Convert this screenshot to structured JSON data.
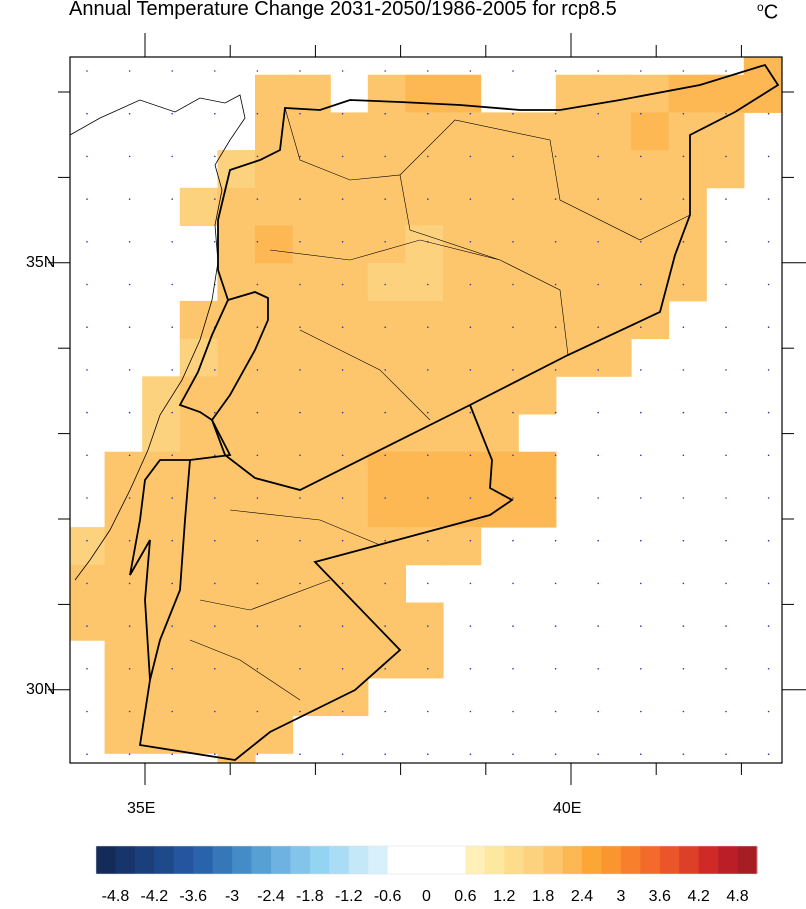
{
  "title": "Annual Temperature Change 2031-2050/1986-2005 for rcp8.5",
  "units": {
    "degree": "o",
    "unit": "C"
  },
  "axes": {
    "y_labels": [
      {
        "lat": 35,
        "text": "35N"
      },
      {
        "lat": 30,
        "text": "30N"
      }
    ],
    "x_labels": [
      {
        "lon": 35,
        "text": "35E"
      },
      {
        "lon": 40,
        "text": "40E"
      }
    ]
  },
  "colors": {
    "map_border": "#000000",
    "grid_dot": "#3030c0"
  },
  "chart_data": {
    "type": "heatmap",
    "title": "Annual Temperature Change 2031-2050/1986-2005 for rcp8.5",
    "units": "°C",
    "lon_range": [
      34.1,
      42.5
    ],
    "lat_range": [
      29.15,
      37.4
    ],
    "grid_values": [
      [
        null,
        null,
        null,
        null,
        null,
        null,
        null,
        null,
        null,
        null,
        null,
        null,
        null,
        null,
        null,
        null,
        null,
        null,
        2.1
      ],
      [
        null,
        null,
        null,
        null,
        null,
        1.8,
        1.8,
        null,
        1.8,
        2.1,
        2.1,
        null,
        null,
        1.8,
        1.8,
        1.8,
        2.1,
        2.1,
        2.1
      ],
      [
        null,
        null,
        null,
        null,
        null,
        1.8,
        1.8,
        1.8,
        1.8,
        1.8,
        1.8,
        1.8,
        1.8,
        1.8,
        1.8,
        2.1,
        1.8,
        1.8,
        null
      ],
      [
        null,
        null,
        null,
        null,
        1.5,
        1.8,
        1.8,
        1.8,
        1.8,
        1.8,
        1.8,
        1.8,
        1.8,
        1.8,
        1.8,
        1.8,
        1.8,
        1.8,
        null
      ],
      [
        null,
        null,
        null,
        1.5,
        1.8,
        1.8,
        1.8,
        1.8,
        1.8,
        1.8,
        1.8,
        1.8,
        1.8,
        1.8,
        1.8,
        1.8,
        1.8,
        null,
        null
      ],
      [
        null,
        null,
        null,
        null,
        1.8,
        2.1,
        1.8,
        1.8,
        1.8,
        1.5,
        1.8,
        1.8,
        1.8,
        1.8,
        1.8,
        1.8,
        1.8,
        null,
        null
      ],
      [
        null,
        null,
        null,
        null,
        1.8,
        1.8,
        1.8,
        1.8,
        1.5,
        1.5,
        1.8,
        1.8,
        1.8,
        1.8,
        1.8,
        1.8,
        1.8,
        null,
        null
      ],
      [
        null,
        null,
        null,
        1.8,
        1.8,
        1.8,
        1.8,
        1.8,
        1.8,
        1.8,
        1.8,
        1.8,
        1.8,
        1.8,
        1.8,
        1.8,
        null,
        null,
        null
      ],
      [
        null,
        null,
        null,
        1.5,
        1.8,
        1.8,
        1.8,
        1.8,
        1.8,
        1.8,
        1.8,
        1.8,
        1.8,
        1.8,
        1.8,
        null,
        null,
        null,
        null
      ],
      [
        null,
        null,
        1.5,
        1.8,
        1.8,
        1.8,
        1.8,
        1.8,
        1.8,
        1.8,
        1.8,
        1.8,
        1.8,
        null,
        null,
        null,
        null,
        null,
        null
      ],
      [
        null,
        null,
        1.5,
        1.8,
        1.8,
        1.8,
        1.8,
        1.8,
        1.8,
        1.8,
        1.8,
        1.8,
        null,
        null,
        null,
        null,
        null,
        null,
        null
      ],
      [
        null,
        1.8,
        1.8,
        1.8,
        1.8,
        1.8,
        1.8,
        1.8,
        2.1,
        2.1,
        2.1,
        2.1,
        2.1,
        null,
        null,
        null,
        null,
        null,
        null
      ],
      [
        null,
        1.8,
        1.8,
        1.8,
        1.8,
        1.8,
        1.8,
        1.8,
        2.1,
        2.1,
        2.1,
        2.1,
        2.1,
        null,
        null,
        null,
        null,
        null,
        null
      ],
      [
        1.5,
        1.8,
        1.8,
        1.8,
        1.8,
        1.8,
        1.8,
        1.8,
        1.8,
        1.8,
        1.8,
        null,
        null,
        null,
        null,
        null,
        null,
        null,
        null
      ],
      [
        1.8,
        1.8,
        1.8,
        1.8,
        1.8,
        1.8,
        1.8,
        1.8,
        1.8,
        null,
        null,
        null,
        null,
        null,
        null,
        null,
        null,
        null,
        null
      ],
      [
        1.8,
        1.8,
        1.8,
        1.8,
        1.8,
        1.8,
        1.8,
        1.8,
        1.8,
        1.8,
        null,
        null,
        null,
        null,
        null,
        null,
        null,
        null,
        null
      ],
      [
        null,
        1.8,
        1.8,
        1.8,
        1.8,
        1.8,
        1.8,
        1.8,
        1.8,
        1.8,
        null,
        null,
        null,
        null,
        null,
        null,
        null,
        null,
        null
      ],
      [
        null,
        1.8,
        1.8,
        1.8,
        1.8,
        1.8,
        1.8,
        1.8,
        null,
        null,
        null,
        null,
        null,
        null,
        null,
        null,
        null,
        null,
        null
      ],
      [
        null,
        1.8,
        1.8,
        1.8,
        1.8,
        1.8,
        null,
        null,
        null,
        null,
        null,
        null,
        null,
        null,
        null,
        null,
        null,
        null,
        null
      ],
      [
        null,
        null,
        null,
        null,
        1.8,
        null,
        null,
        null,
        null,
        null,
        null,
        null,
        null,
        null,
        null,
        null,
        null,
        null,
        null
      ]
    ],
    "colorbar": {
      "labels": [
        "-4.8",
        "-4.2",
        "-3.6",
        "-3",
        "-2.4",
        "-1.8",
        "-1.2",
        "-0.6",
        "0",
        "0.6",
        "1.2",
        "1.8",
        "2.4",
        "3",
        "3.6",
        "4.2",
        "4.8"
      ],
      "min": -5.1,
      "max": 5.1,
      "step": 0.3
    }
  }
}
